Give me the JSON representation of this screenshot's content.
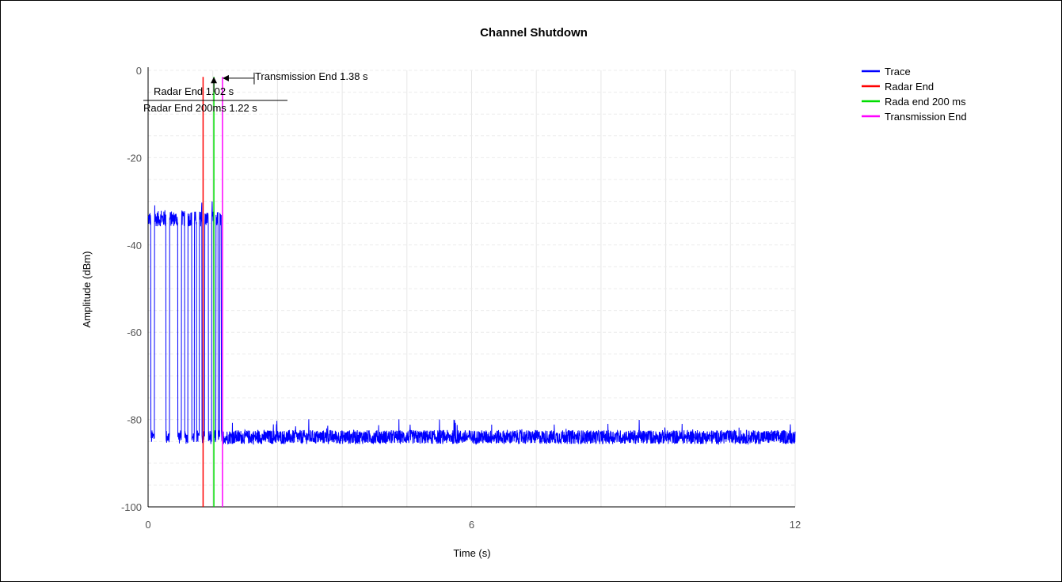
{
  "chart_data": {
    "type": "line",
    "title": "Channel Shutdown",
    "xlabel": "Time (s)",
    "ylabel": "Amplitude (dBm)",
    "xlim": [
      0,
      12
    ],
    "ylim": [
      -100,
      0
    ],
    "xticks": [
      0,
      6,
      12
    ],
    "yticks": [
      0,
      -20,
      -40,
      -60,
      -80,
      -100
    ],
    "x_minor_step": 1.2,
    "y_minor_step": 5,
    "grid": true,
    "legend_position": "top-right",
    "series": [
      {
        "name": "Trace",
        "color": "#0000ff",
        "kind": "trace",
        "bursts": [
          {
            "start": 0.0,
            "end": 0.05
          },
          {
            "start": 0.12,
            "end": 0.33
          },
          {
            "start": 0.4,
            "end": 0.55
          },
          {
            "start": 0.62,
            "end": 0.68
          },
          {
            "start": 0.74,
            "end": 0.81
          },
          {
            "start": 0.86,
            "end": 0.9
          },
          {
            "start": 0.95,
            "end": 1.0
          },
          {
            "start": 1.05,
            "end": 1.12
          },
          {
            "start": 1.18,
            "end": 1.22
          },
          {
            "start": 1.26,
            "end": 1.3
          },
          {
            "start": 1.33,
            "end": 1.36
          }
        ],
        "burst_level": -34,
        "noise_floor": -84,
        "end_time": 12
      },
      {
        "name": "Radar End",
        "color": "#ff0000",
        "kind": "vline",
        "x": 1.02
      },
      {
        "name": "Rada end 200 ms",
        "color": "#00dd00",
        "kind": "vline",
        "x": 1.22
      },
      {
        "name": "Transmission End",
        "color": "#ff00ff",
        "kind": "vline",
        "x": 1.38
      }
    ],
    "annotations": [
      {
        "text": "Transmission End 1.38 s",
        "x": 1.38
      },
      {
        "text": "Radar End 1.02 s",
        "x": 1.02
      },
      {
        "text": "Radar End 200ms 1.22 s",
        "x": 1.22
      }
    ]
  }
}
